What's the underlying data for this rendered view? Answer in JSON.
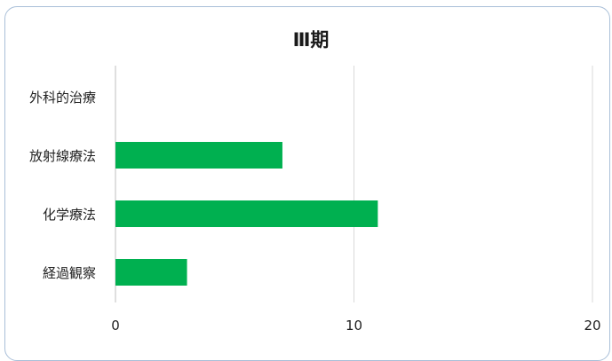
{
  "chart_data": {
    "type": "bar",
    "orientation": "horizontal",
    "title": "Ⅲ期",
    "categories": [
      "外科的治療",
      "放射線療法",
      "化学療法",
      "経過観察"
    ],
    "values": [
      0,
      7,
      11,
      3
    ],
    "xlim": [
      0,
      20
    ],
    "xticks": [
      0,
      10,
      20
    ],
    "xtick_labels": [
      "0",
      "10",
      "20"
    ],
    "xlabel": "",
    "ylabel": "",
    "grid": "vertical",
    "legend": "none",
    "bar_color": "#00b050",
    "grid_color": "#d9d9d9",
    "text_color": "#222222"
  }
}
